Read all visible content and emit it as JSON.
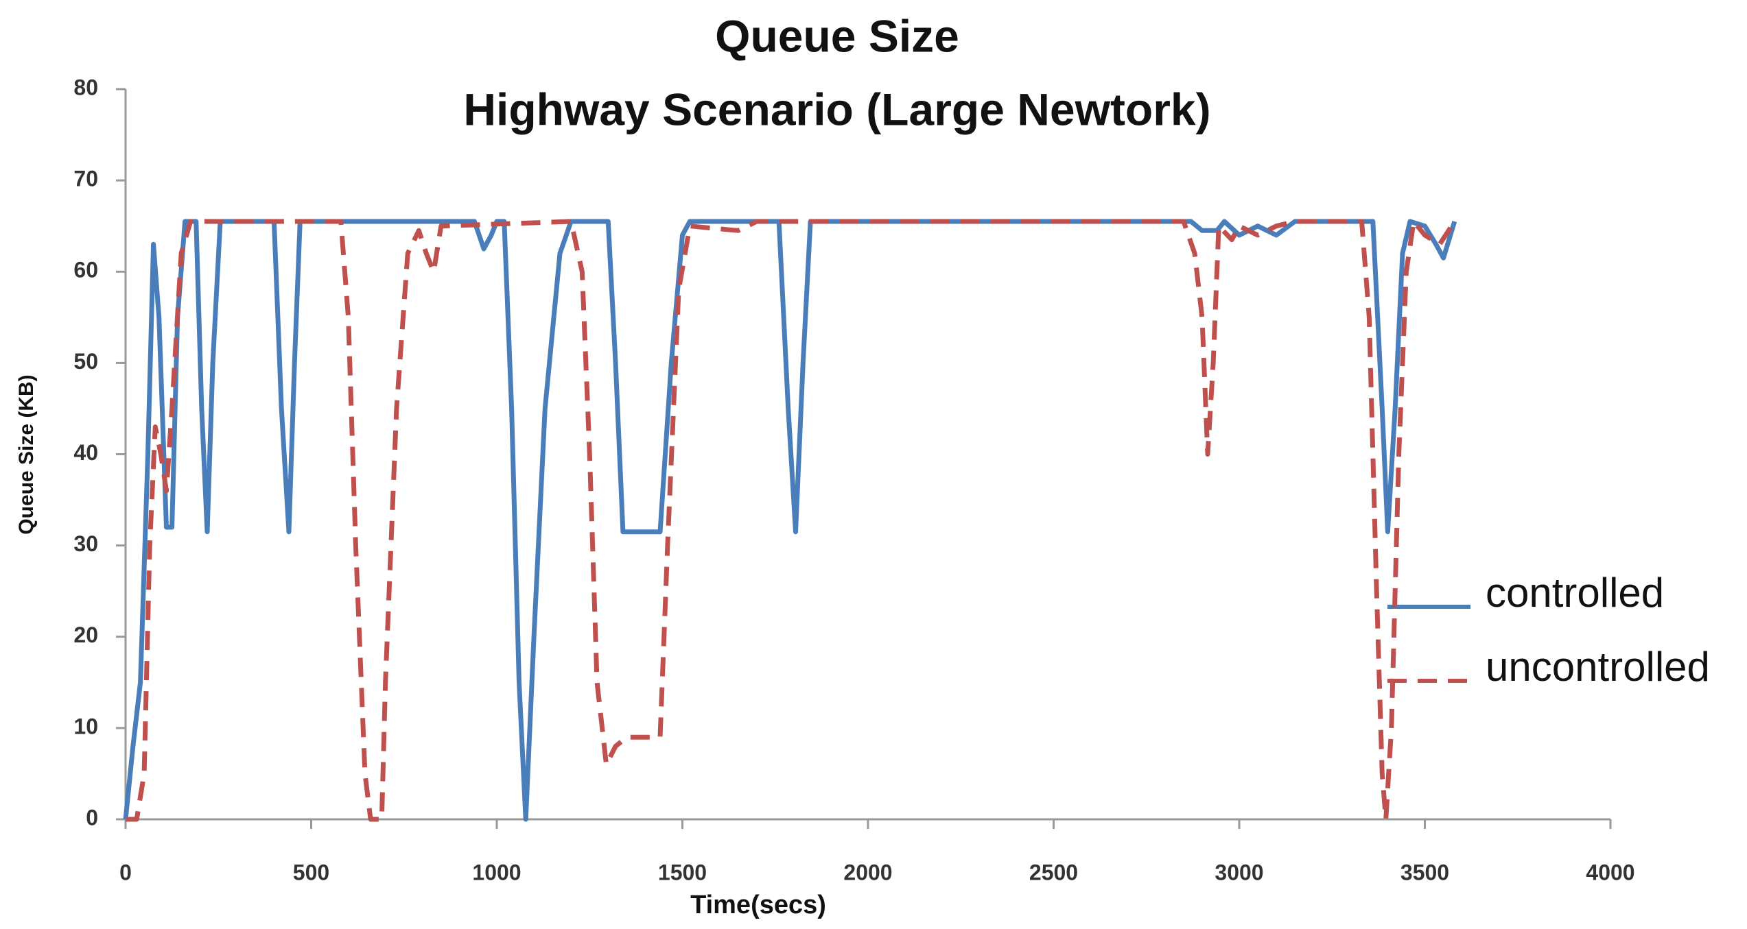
{
  "chart_data": {
    "type": "line",
    "title": "Queue Size",
    "subtitle": "Highway Scenario (Large Newtork)",
    "x_label": "Time(secs)",
    "y_label": "Queue Size (KB)",
    "xlim": [
      0,
      4000
    ],
    "xticks": [
      0,
      500,
      1000,
      1500,
      2000,
      2500,
      3000,
      3500,
      4000
    ],
    "ylim": [
      0,
      80
    ],
    "yticks": [
      0,
      10,
      20,
      30,
      40,
      50,
      60,
      70,
      80
    ],
    "grid": false,
    "legend": "right",
    "series": [
      {
        "name": "controlled",
        "color": "#4a7ebb",
        "dash": false,
        "x": [
          0,
          20,
          40,
          60,
          75,
          90,
          110,
          125,
          140,
          160,
          190,
          205,
          220,
          235,
          255,
          400,
          420,
          440,
          455,
          470,
          940,
          965,
          985,
          1000,
          1020,
          1040,
          1060,
          1078,
          1100,
          1130,
          1170,
          1200,
          1300,
          1320,
          1340,
          1380,
          1440,
          1470,
          1500,
          1520,
          1760,
          1785,
          1805,
          1825,
          1845,
          2870,
          2900,
          2940,
          2960,
          3000,
          3050,
          3100,
          3150,
          3360,
          3385,
          3400,
          3420,
          3440,
          3460,
          3500,
          3530,
          3550,
          3580
        ],
        "values": [
          0,
          8,
          15,
          40,
          63,
          55,
          32,
          32,
          55,
          65.5,
          65.5,
          45,
          31.5,
          50,
          65.5,
          65.5,
          45,
          31.5,
          50,
          65.5,
          65.5,
          62.5,
          64,
          65.5,
          65.5,
          45,
          15,
          0,
          20,
          45,
          62,
          65.5,
          65.5,
          50,
          31.5,
          31.5,
          31.5,
          50,
          64,
          65.5,
          65.5,
          45,
          31.5,
          50,
          65.5,
          65.5,
          64.5,
          64.5,
          65.5,
          64,
          65,
          64,
          65.5,
          65.5,
          45,
          31.5,
          45,
          62,
          65.5,
          65,
          63,
          61.5,
          65.5
        ]
      },
      {
        "name": "uncontrolled",
        "color": "#c0504d",
        "dash": true,
        "x": [
          0,
          30,
          50,
          65,
          80,
          95,
          110,
          125,
          150,
          175,
          580,
          600,
          620,
          645,
          660,
          690,
          700,
          730,
          760,
          790,
          810,
          830,
          850,
          1200,
          1230,
          1250,
          1270,
          1295,
          1320,
          1350,
          1440,
          1460,
          1490,
          1520,
          1650,
          1700,
          2850,
          2880,
          2900,
          2915,
          2930,
          2945,
          2980,
          3000,
          3050,
          3100,
          3150,
          3330,
          3350,
          3370,
          3385,
          3395,
          3410,
          3430,
          3450,
          3470,
          3500,
          3540,
          3580
        ],
        "values": [
          0,
          0,
          5,
          30,
          43,
          40,
          36,
          45,
          62,
          65.5,
          65.5,
          55,
          30,
          5,
          0,
          0,
          15,
          45,
          62,
          64.5,
          62,
          60,
          65,
          65.5,
          60,
          40,
          15,
          6,
          8,
          9,
          9,
          30,
          58,
          65,
          64.5,
          65.5,
          65.5,
          62,
          55,
          40,
          50,
          65,
          63.5,
          65,
          64,
          65,
          65.5,
          65.5,
          55,
          25,
          5,
          0,
          10,
          40,
          60,
          65.5,
          64,
          63,
          65.5
        ]
      }
    ]
  }
}
